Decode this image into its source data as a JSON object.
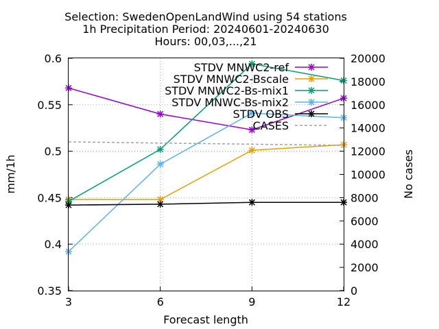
{
  "chart_data": {
    "type": "line",
    "title_lines": [
      "Selection: SwedenOpenLandWind using    54 stations",
      "1h Precipitation   Period: 20240601-20240630",
      "Hours: 00,03,...,21"
    ],
    "xlabel": "Forecast length",
    "ylabel": "mm/1h",
    "y2label": "No cases",
    "x": [
      3,
      6,
      9,
      12
    ],
    "xlim": [
      3,
      12
    ],
    "ylim": [
      0.35,
      0.6
    ],
    "y2lim": [
      0,
      20000
    ],
    "xticks": [
      "3",
      "6",
      "9",
      "12"
    ],
    "yticks": [
      "0.35",
      "0.4",
      "0.45",
      "0.5",
      "0.55",
      "0.6"
    ],
    "y2ticks": [
      "0",
      "2000",
      "4000",
      "6000",
      "8000",
      "10000",
      "12000",
      "14000",
      "16000",
      "18000",
      "20000"
    ],
    "grid": true,
    "legend_position": "top-right",
    "series": [
      {
        "name": "STDV MNWC2-ref",
        "color": "#9400d3",
        "axis": "y",
        "values": [
          0.568,
          0.54,
          0.523,
          0.557
        ]
      },
      {
        "name": "STDV MNWC2-Bscale",
        "color": "#e69f00",
        "axis": "y",
        "values": [
          0.448,
          0.448,
          0.501,
          0.507
        ]
      },
      {
        "name": "STDV MNWC2-Bs-mix1",
        "color": "#009e73",
        "axis": "y",
        "values": [
          0.446,
          0.502,
          0.594,
          0.576
        ]
      },
      {
        "name": "STDV MNWC-Bs-mix2",
        "color": "#56b4e9",
        "axis": "y",
        "values": [
          0.392,
          0.486,
          0.541,
          0.536
        ]
      },
      {
        "name": "STDV OBS",
        "color": "#000000",
        "axis": "y",
        "values": [
          0.442,
          0.443,
          0.445,
          0.445
        ]
      },
      {
        "name": "CASES",
        "color": "#a0a0a0",
        "axis": "y2",
        "dashed": true,
        "values": [
          12800,
          12700,
          12600,
          12500
        ]
      }
    ]
  }
}
